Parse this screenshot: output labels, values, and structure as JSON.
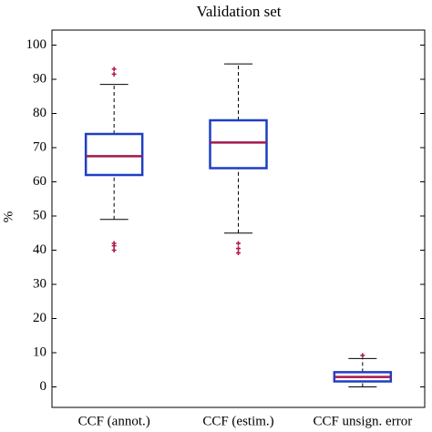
{
  "chart_data": {
    "type": "box",
    "title": "Validation set",
    "y_label": "%",
    "categories": [
      "CCF (annot.)",
      "CCF (estim.)",
      "CCF unsign. error"
    ],
    "boxes": [
      {
        "whisker_low": 49,
        "q1": 62,
        "median": 67.5,
        "q3": 74,
        "whisker_high": 88.5,
        "outliers": [
          93,
          91.5,
          42,
          41.3,
          40
        ]
      },
      {
        "whisker_low": 45,
        "q1": 64,
        "median": 71.5,
        "q3": 78,
        "whisker_high": 94.5,
        "outliers": [
          42,
          40.5,
          39.2
        ]
      },
      {
        "whisker_low": 0,
        "q1": 1.6,
        "median": 2.9,
        "q3": 4.3,
        "whisker_high": 8.3,
        "outliers": [
          9.2
        ]
      }
    ],
    "box_color": "#1f3fc4",
    "median_color": "#a3184e",
    "outlier_color": "#b01850",
    "ylim": [
      -6,
      104.4
    ],
    "yticks": [
      0,
      10,
      20,
      30,
      40,
      50,
      60,
      70,
      80,
      90,
      100
    ],
    "grid": false
  }
}
